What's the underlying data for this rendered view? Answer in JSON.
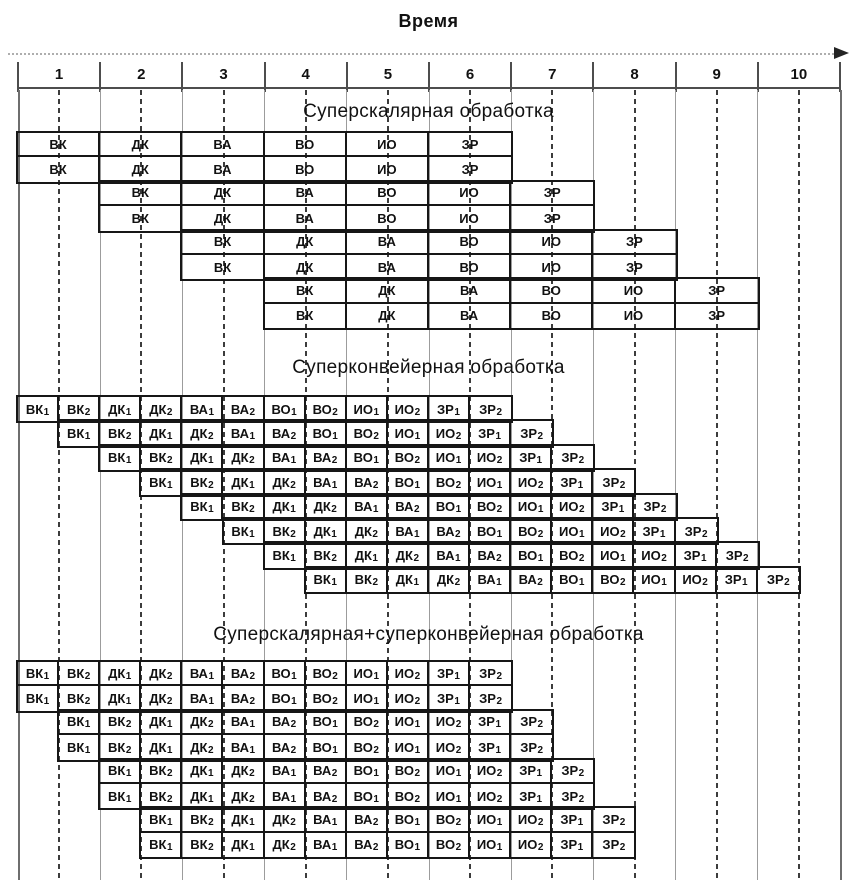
{
  "header": {
    "time_axis_label": "Время"
  },
  "timeline": {
    "ticks": [
      "1",
      "2",
      "3",
      "4",
      "5",
      "6",
      "7",
      "8",
      "9",
      "10"
    ]
  },
  "colors": {
    "background": "#ffffff",
    "border": "#161616",
    "text": "#111111",
    "guide_solid": "#9c9c9c",
    "guide_dashed": "#3c3c3c",
    "arrow": "#242424"
  },
  "icons": {
    "time_axis_arrow": "right-arrow-icon"
  },
  "sections": [
    {
      "id": "superscalar",
      "title": "Суперскалярная обработка",
      "stage_span_half_cells": 2,
      "rows_per_block": 2,
      "stages": [
        {
          "t": "ВК",
          "s": ""
        },
        {
          "t": "ДК",
          "s": ""
        },
        {
          "t": "ВА",
          "s": ""
        },
        {
          "t": "ВО",
          "s": ""
        },
        {
          "t": "ИО",
          "s": ""
        },
        {
          "t": "ЗР",
          "s": ""
        }
      ],
      "row_offsets_half_cells": [
        0,
        0,
        2,
        2,
        4,
        4,
        6,
        6
      ]
    },
    {
      "id": "superpipeline",
      "title": "Суперконвейерная обработка",
      "stage_span_half_cells": 1,
      "rows_per_block": 1,
      "stages": [
        {
          "t": "ВК",
          "s": "1"
        },
        {
          "t": "ВК",
          "s": "2"
        },
        {
          "t": "ДК",
          "s": "1"
        },
        {
          "t": "ДК",
          "s": "2"
        },
        {
          "t": "ВА",
          "s": "1"
        },
        {
          "t": "ВА",
          "s": "2"
        },
        {
          "t": "ВО",
          "s": "1"
        },
        {
          "t": "ВО",
          "s": "2"
        },
        {
          "t": "ИО",
          "s": "1"
        },
        {
          "t": "ИО",
          "s": "2"
        },
        {
          "t": "ЗР",
          "s": "1"
        },
        {
          "t": "ЗР",
          "s": "2"
        }
      ],
      "row_offsets_half_cells": [
        0,
        1,
        2,
        3,
        4,
        5,
        6,
        7
      ]
    },
    {
      "id": "superscalar-superpipeline",
      "title": "Суперскалярная+суперконвейерная обработка",
      "stage_span_half_cells": 1,
      "rows_per_block": 2,
      "stages": [
        {
          "t": "ВК",
          "s": "1"
        },
        {
          "t": "ВК",
          "s": "2"
        },
        {
          "t": "ДК",
          "s": "1"
        },
        {
          "t": "ДК",
          "s": "2"
        },
        {
          "t": "ВА",
          "s": "1"
        },
        {
          "t": "ВА",
          "s": "2"
        },
        {
          "t": "ВО",
          "s": "1"
        },
        {
          "t": "ВО",
          "s": "2"
        },
        {
          "t": "ИО",
          "s": "1"
        },
        {
          "t": "ИО",
          "s": "2"
        },
        {
          "t": "ЗР",
          "s": "1"
        },
        {
          "t": "ЗР",
          "s": "2"
        }
      ],
      "row_offsets_half_cells": [
        0,
        0,
        1,
        1,
        2,
        2,
        3,
        3
      ]
    }
  ]
}
